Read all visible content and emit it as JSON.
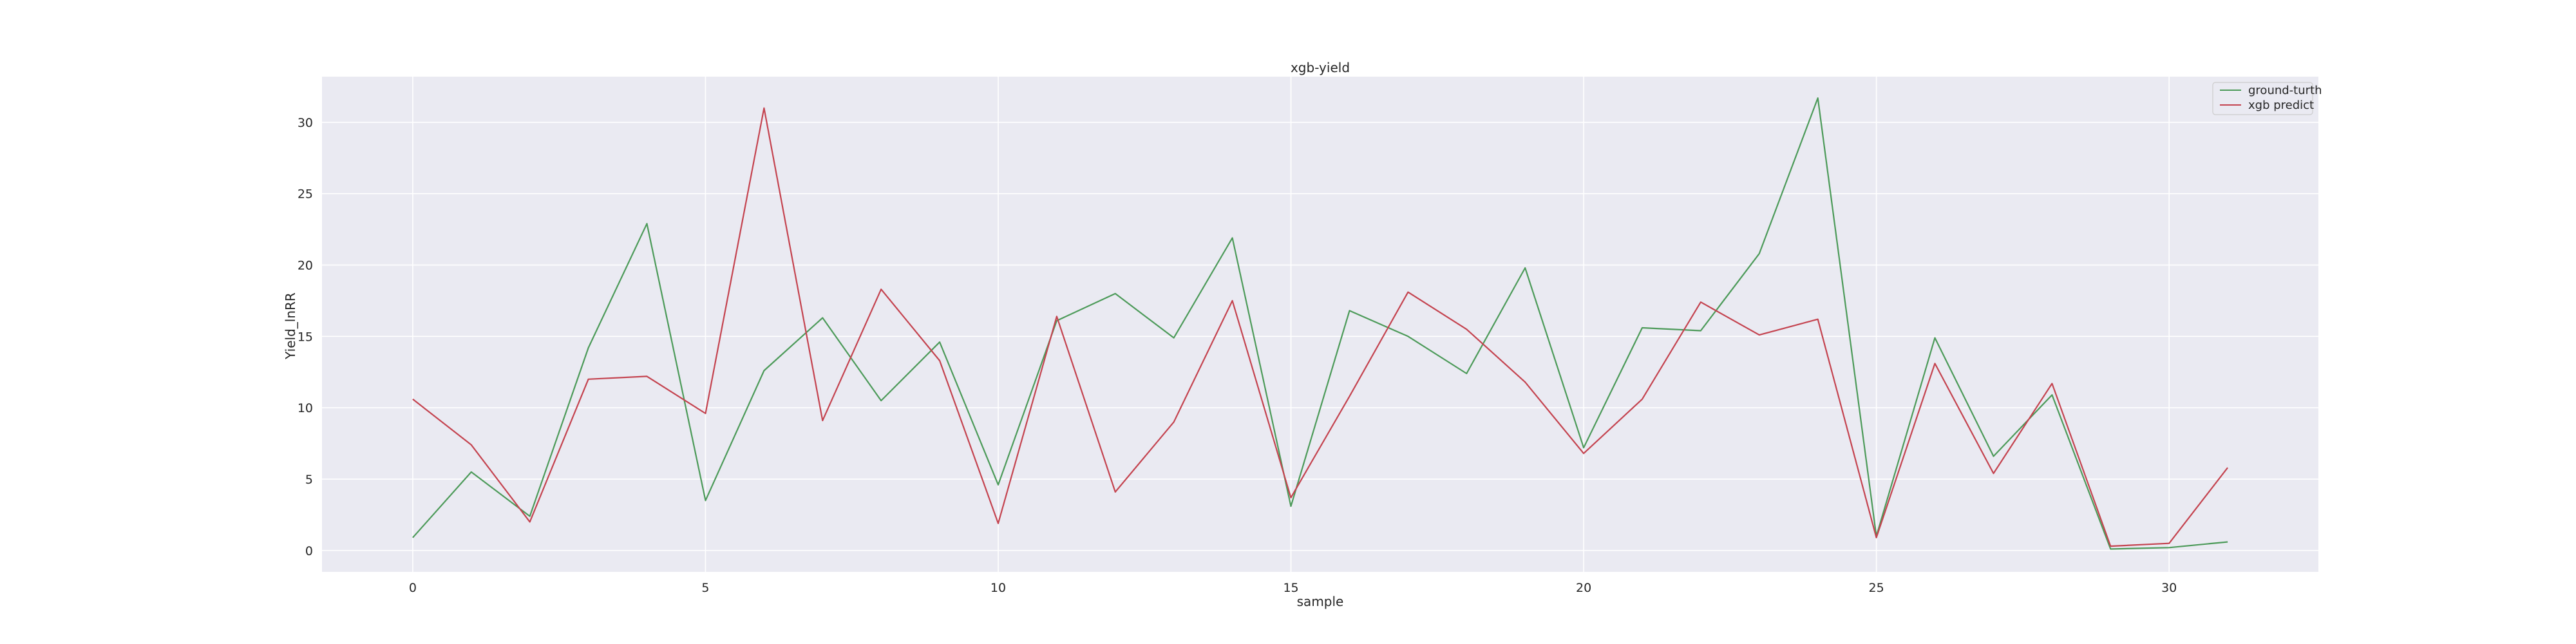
{
  "chart_data": {
    "type": "line",
    "title": "xgb-yield",
    "xlabel": "sample",
    "ylabel": "Yield_lnRR",
    "xlim": [
      -1.55,
      32.55
    ],
    "ylim": [
      -1.5,
      33.2
    ],
    "xticks": [
      0,
      5,
      10,
      15,
      20,
      25,
      30
    ],
    "yticks": [
      0,
      5,
      10,
      15,
      20,
      25,
      30
    ],
    "grid": true,
    "legend_position": "top-right",
    "x": [
      0,
      1,
      2,
      3,
      4,
      5,
      6,
      7,
      8,
      9,
      10,
      11,
      12,
      13,
      14,
      15,
      16,
      17,
      18,
      19,
      20,
      21,
      22,
      23,
      24,
      25,
      26,
      27,
      28,
      29,
      30,
      31
    ],
    "series": [
      {
        "name": "ground-turth",
        "color": "#4c9a59",
        "values": [
          0.9,
          5.5,
          2.4,
          14.2,
          22.9,
          3.5,
          12.6,
          16.3,
          10.5,
          14.6,
          4.6,
          16.1,
          18.0,
          14.9,
          21.9,
          3.1,
          16.8,
          15.0,
          12.4,
          19.8,
          7.2,
          15.6,
          15.4,
          20.8,
          31.7,
          1.0,
          14.9,
          6.6,
          10.9,
          0.1,
          0.2,
          0.6
        ]
      },
      {
        "name": "xgb predict",
        "color": "#c4434f",
        "values": [
          10.6,
          7.4,
          2.0,
          12.0,
          12.2,
          9.6,
          31.0,
          9.1,
          18.3,
          13.3,
          1.9,
          16.4,
          4.1,
          9.0,
          17.5,
          3.7,
          10.8,
          18.1,
          15.5,
          11.8,
          6.8,
          10.6,
          17.4,
          15.1,
          16.2,
          0.9,
          13.1,
          5.4,
          11.7,
          0.3,
          0.5,
          5.8
        ]
      }
    ]
  }
}
